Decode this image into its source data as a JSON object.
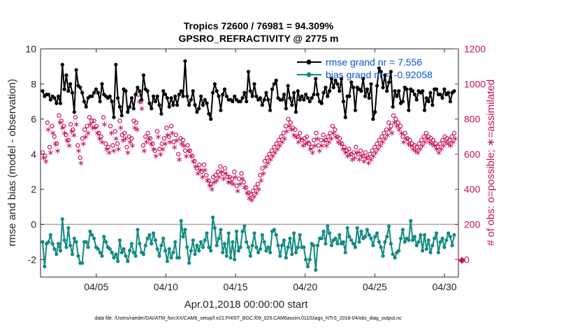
{
  "chart_data": {
    "type": "line",
    "title": "Tropics 72600 / 76981 = 94.309%",
    "subtitle": "GPSRO_REFRACTIVITY @ 2775 m",
    "xlabel": "Apr.01,2018 00:00:00 start",
    "ylabel": "rmse and bias (model - observation)",
    "ylabel_right": "# of obs: o=possible; ∗=assimilated",
    "ylim": [
      -3,
      10
    ],
    "ylim_right": [
      -100,
      1200
    ],
    "xlim": [
      1,
      31
    ],
    "yticks": [
      "-2",
      "0",
      "2",
      "4",
      "6",
      "8",
      "10"
    ],
    "yticks_right": [
      "0",
      "200",
      "400",
      "600",
      "800",
      "1000",
      "1200"
    ],
    "xticks": [
      "04/05",
      "04/10",
      "04/15",
      "04/20",
      "04/25",
      "04/30"
    ],
    "footer": "data file: /Users/raeder/DAI/ATM_forcXX/CAM6_setup/f.e21.FHIST_BGC.f09_025.CAM6assim.011/Diags_NTrS_2018-04/obs_diag_output.nc",
    "legend": [
      "rmse grand nr = 7.556",
      "bias grand nr = -0.92058"
    ],
    "colors": {
      "rmse": "#000000",
      "bias": "#128a82",
      "obs": "#c8105a",
      "zero": "#a6a6a6"
    },
    "series": [
      {
        "name": "rmse",
        "values": [
          7.6,
          7.3,
          7.4,
          7.4,
          7.1,
          7.3,
          7.2,
          6.9,
          7.3,
          6.9,
          9.1,
          7.7,
          8.5,
          7.6,
          8.0,
          7.5,
          6.4,
          8.8,
          7.9,
          7.8,
          7.5,
          7.0,
          6.7,
          7.2,
          7.3,
          7.3,
          7.5,
          7.7,
          7.5,
          7.0,
          8.0,
          7.4,
          7.3,
          7.2,
          7.3,
          7.0,
          6.1,
          9.1,
          7.2,
          6.7,
          6.2,
          7.7,
          7.6,
          6.4,
          6.7,
          7.2,
          6.6,
          7.4,
          7.8,
          7.6,
          7.1,
          8.5,
          7.7,
          7.6,
          6.9,
          6.6,
          7.3,
          7.0,
          7.3,
          6.8,
          6.3,
          7.6,
          7.4,
          7.2,
          6.7,
          7.2,
          6.8,
          7.3,
          6.8,
          7.4,
          7.6,
          7.3,
          9.3,
          7.3,
          6.8,
          7.1,
          7.6,
          6.8,
          6.4,
          6.6,
          7.3,
          6.8,
          7.1,
          6.9,
          6.3,
          6.0,
          7.5,
          8.0,
          7.6,
          7.3,
          6.5,
          7.4,
          7.7,
          7.3,
          7.1,
          7.1,
          7.0,
          7.3,
          7.1,
          7.0,
          7.0,
          7.2,
          7.5,
          7.0,
          8.7,
          7.6,
          7.3,
          8.0,
          7.3,
          7.1,
          7.2,
          6.8,
          7.1,
          7.5,
          7.1,
          6.5,
          7.7,
          8.0,
          8.2,
          7.2,
          7.1,
          7.1,
          7.4,
          6.6,
          7.9,
          7.2,
          6.8,
          7.5,
          6.4,
          7.6,
          7.1,
          7.3,
          7.1,
          7.4,
          7.2,
          7.0,
          7.2,
          7.4,
          8.3,
          7.4,
          7.0,
          6.9,
          7.5,
          7.8,
          7.3,
          7.6,
          8.3,
          7.8,
          8.2,
          8.0,
          7.6,
          8.3,
          7.0,
          6.1,
          7.3,
          7.3,
          8.1,
          7.8,
          6.5,
          7.8,
          7.7,
          7.6,
          8.3,
          7.3,
          7.7,
          7.2,
          8.0,
          6.0,
          6.4,
          7.9,
          8.9,
          8.7,
          7.8,
          8.5,
          7.6,
          8.1,
          8.7,
          6.7,
          7.6,
          7.3,
          7.6,
          6.9,
          7.0,
          7.8,
          7.7,
          6.5,
          7.7,
          7.6,
          7.4,
          7.1,
          7.6,
          7.5,
          7.6,
          6.5,
          7.2,
          7.0,
          7.5,
          6.8,
          7.7,
          7.7,
          7.4,
          7.4,
          7.2,
          7.7,
          7.4,
          7.5,
          7.0,
          7.5,
          7.6
        ]
      },
      {
        "name": "bias",
        "values": [
          -1.0,
          -2.4,
          -1.1,
          -1.0,
          -0.6,
          -1.1,
          -1.4,
          -1.7,
          -1.1,
          -1.5,
          0.3,
          -0.9,
          -1.3,
          -0.2,
          -1.2,
          -1.7,
          -0.8,
          -1.0,
          -1.8,
          -2.2,
          -2.2,
          -1.0,
          -1.0,
          -1.3,
          -0.4,
          -0.6,
          -0.8,
          -1.3,
          -1.4,
          -1.6,
          -1.8,
          -0.7,
          -1.0,
          -1.3,
          -1.4,
          -1.6,
          -1.9,
          -1.7,
          -2.1,
          -0.9,
          -1.6,
          -1.4,
          -1.8,
          -2.1,
          -1.5,
          -1.1,
          -1.6,
          -1.8,
          -0.3,
          -1.1,
          -1.6,
          -1.7,
          -1.2,
          -0.8,
          -0.6,
          -1.1,
          -0.5,
          -0.9,
          -1.4,
          -1.8,
          -1.2,
          -0.8,
          -1.5,
          -2.1,
          -1.4,
          -1.9,
          -1.6,
          -1.0,
          -1.9,
          -1.9,
          0.2,
          -0.7,
          -0.3,
          -1.3,
          -2.2,
          -1.5,
          -0.9,
          -1.7,
          -1.2,
          -1.5,
          -1.0,
          -1.3,
          -0.9,
          -0.5,
          -1.3,
          -1.5,
          0.4,
          -0.2,
          -1.2,
          -0.8,
          -0.3,
          -1.6,
          -1.1,
          -1.8,
          -0.5,
          -1.9,
          -1.0,
          -2.0,
          -0.4,
          -1.5,
          -1.3,
          -0.4,
          -0.1,
          -1.0,
          -1.3,
          -1.8,
          -1.2,
          -0.5,
          -1.3,
          -1.6,
          -1.4,
          -0.6,
          -1.0,
          -1.5,
          -1.3,
          -1.6,
          -0.4,
          -0.3,
          -0.6,
          -1.2,
          -1.8,
          -1.2,
          -0.9,
          -1.9,
          -1.3,
          -0.8,
          -1.7,
          -0.5,
          -1.6,
          -1.3,
          -0.6,
          -1.3,
          -1.3,
          -2.0,
          -2.4,
          -2.0,
          -1.1,
          -1.2,
          -2.6,
          -1.2,
          -0.8,
          -0.8,
          -0.4,
          -1.1,
          -0.1,
          -0.5,
          -1.2,
          -0.9,
          -0.8,
          -1.1,
          -0.6,
          -1.1,
          -1.0,
          -1.6,
          -0.2,
          -0.7,
          -0.9,
          -1.1,
          -1.3,
          -0.2,
          -1.0,
          -0.4,
          -0.8,
          -0.7,
          -0.3,
          -0.6,
          -0.8,
          -1.2,
          -0.7,
          -0.5,
          -1.0,
          -1.3,
          -1.8,
          -1.0,
          -0.7,
          -0.1,
          -1.1,
          -1.7,
          -1.9,
          -1.6,
          -1.5,
          -0.8,
          -0.3,
          -1.0,
          -0.8,
          -0.9,
          0.2,
          -0.9,
          -0.7,
          -1.2,
          -1.0,
          -0.6,
          -1.5,
          -0.6,
          -1.4,
          -0.9,
          -1.6,
          -1.2,
          -0.8,
          -0.5,
          -1.6,
          -1.0,
          -0.8,
          -1.3,
          -0.9,
          -0.5,
          -0.7,
          -1.2,
          -0.6
        ]
      },
      {
        "name": "possible",
        "values": [
          610,
          590,
          780,
          640,
          760,
          700,
          660,
          820,
          790,
          760,
          710,
          680,
          770,
          740,
          810,
          650,
          580,
          690,
          740,
          760,
          810,
          790,
          790,
          760,
          720,
          700,
          810,
          660,
          640,
          760,
          650,
          730,
          660,
          790,
          710,
          720,
          640,
          700,
          690,
          790,
          780,
          940,
          900,
          650,
          700,
          720,
          690,
          660,
          620,
          730,
          630,
          660,
          690,
          750,
          700,
          760,
          670,
          710,
          600,
          690,
          680,
          620,
          650,
          620,
          590,
          560,
          520,
          540,
          500,
          540,
          480,
          450,
          430,
          470,
          480,
          500,
          530,
          490,
          520,
          470,
          470,
          460,
          500,
          420,
          460,
          490,
          440,
          410,
          380,
          370,
          390,
          410,
          430,
          480,
          520,
          560,
          580,
          600,
          620,
          640,
          660,
          680,
          700,
          720,
          760,
          800,
          780,
          750,
          740,
          700,
          720,
          680,
          690,
          700,
          660,
          640,
          680,
          720,
          650,
          680,
          710,
          680,
          700,
          720,
          760,
          740,
          700,
          690,
          660,
          640,
          620,
          630,
          600,
          610,
          640,
          600,
          620,
          590,
          610,
          580,
          600,
          620,
          640,
          660,
          680,
          700,
          720,
          740,
          780,
          760,
          820,
          800,
          780,
          760,
          700,
          720,
          690,
          680,
          660,
          650,
          640,
          660,
          680,
          700,
          720,
          700,
          690,
          680,
          660,
          640,
          660,
          680,
          700,
          690,
          680,
          700,
          720
        ]
      },
      {
        "name": "assimilated",
        "values": [
          580,
          560,
          740,
          610,
          720,
          660,
          620,
          780,
          750,
          720,
          680,
          650,
          730,
          710,
          770,
          620,
          550,
          660,
          700,
          720,
          770,
          750,
          750,
          720,
          690,
          670,
          770,
          630,
          610,
          720,
          620,
          690,
          630,
          750,
          680,
          690,
          610,
          670,
          650,
          750,
          740,
          900,
          860,
          620,
          670,
          690,
          660,
          630,
          590,
          700,
          600,
          630,
          660,
          710,
          670,
          720,
          640,
          680,
          570,
          660,
          650,
          590,
          620,
          590,
          560,
          530,
          490,
          510,
          470,
          510,
          450,
          420,
          400,
          440,
          450,
          470,
          500,
          460,
          490,
          440,
          440,
          430,
          470,
          390,
          430,
          460,
          410,
          380,
          350,
          340,
          360,
          380,
          400,
          450,
          490,
          530,
          550,
          570,
          590,
          610,
          630,
          650,
          670,
          690,
          730,
          760,
          740,
          710,
          700,
          670,
          690,
          650,
          660,
          670,
          630,
          610,
          650,
          690,
          620,
          650,
          680,
          650,
          670,
          690,
          720,
          700,
          670,
          660,
          630,
          610,
          590,
          600,
          570,
          580,
          610,
          570,
          590,
          560,
          580,
          550,
          570,
          590,
          610,
          630,
          650,
          670,
          690,
          710,
          740,
          720,
          780,
          760,
          740,
          720,
          670,
          690,
          660,
          650,
          630,
          620,
          610,
          630,
          650,
          670,
          690,
          670,
          660,
          650,
          630,
          610,
          630,
          650,
          670,
          660,
          650,
          670,
          690
        ]
      }
    ]
  }
}
